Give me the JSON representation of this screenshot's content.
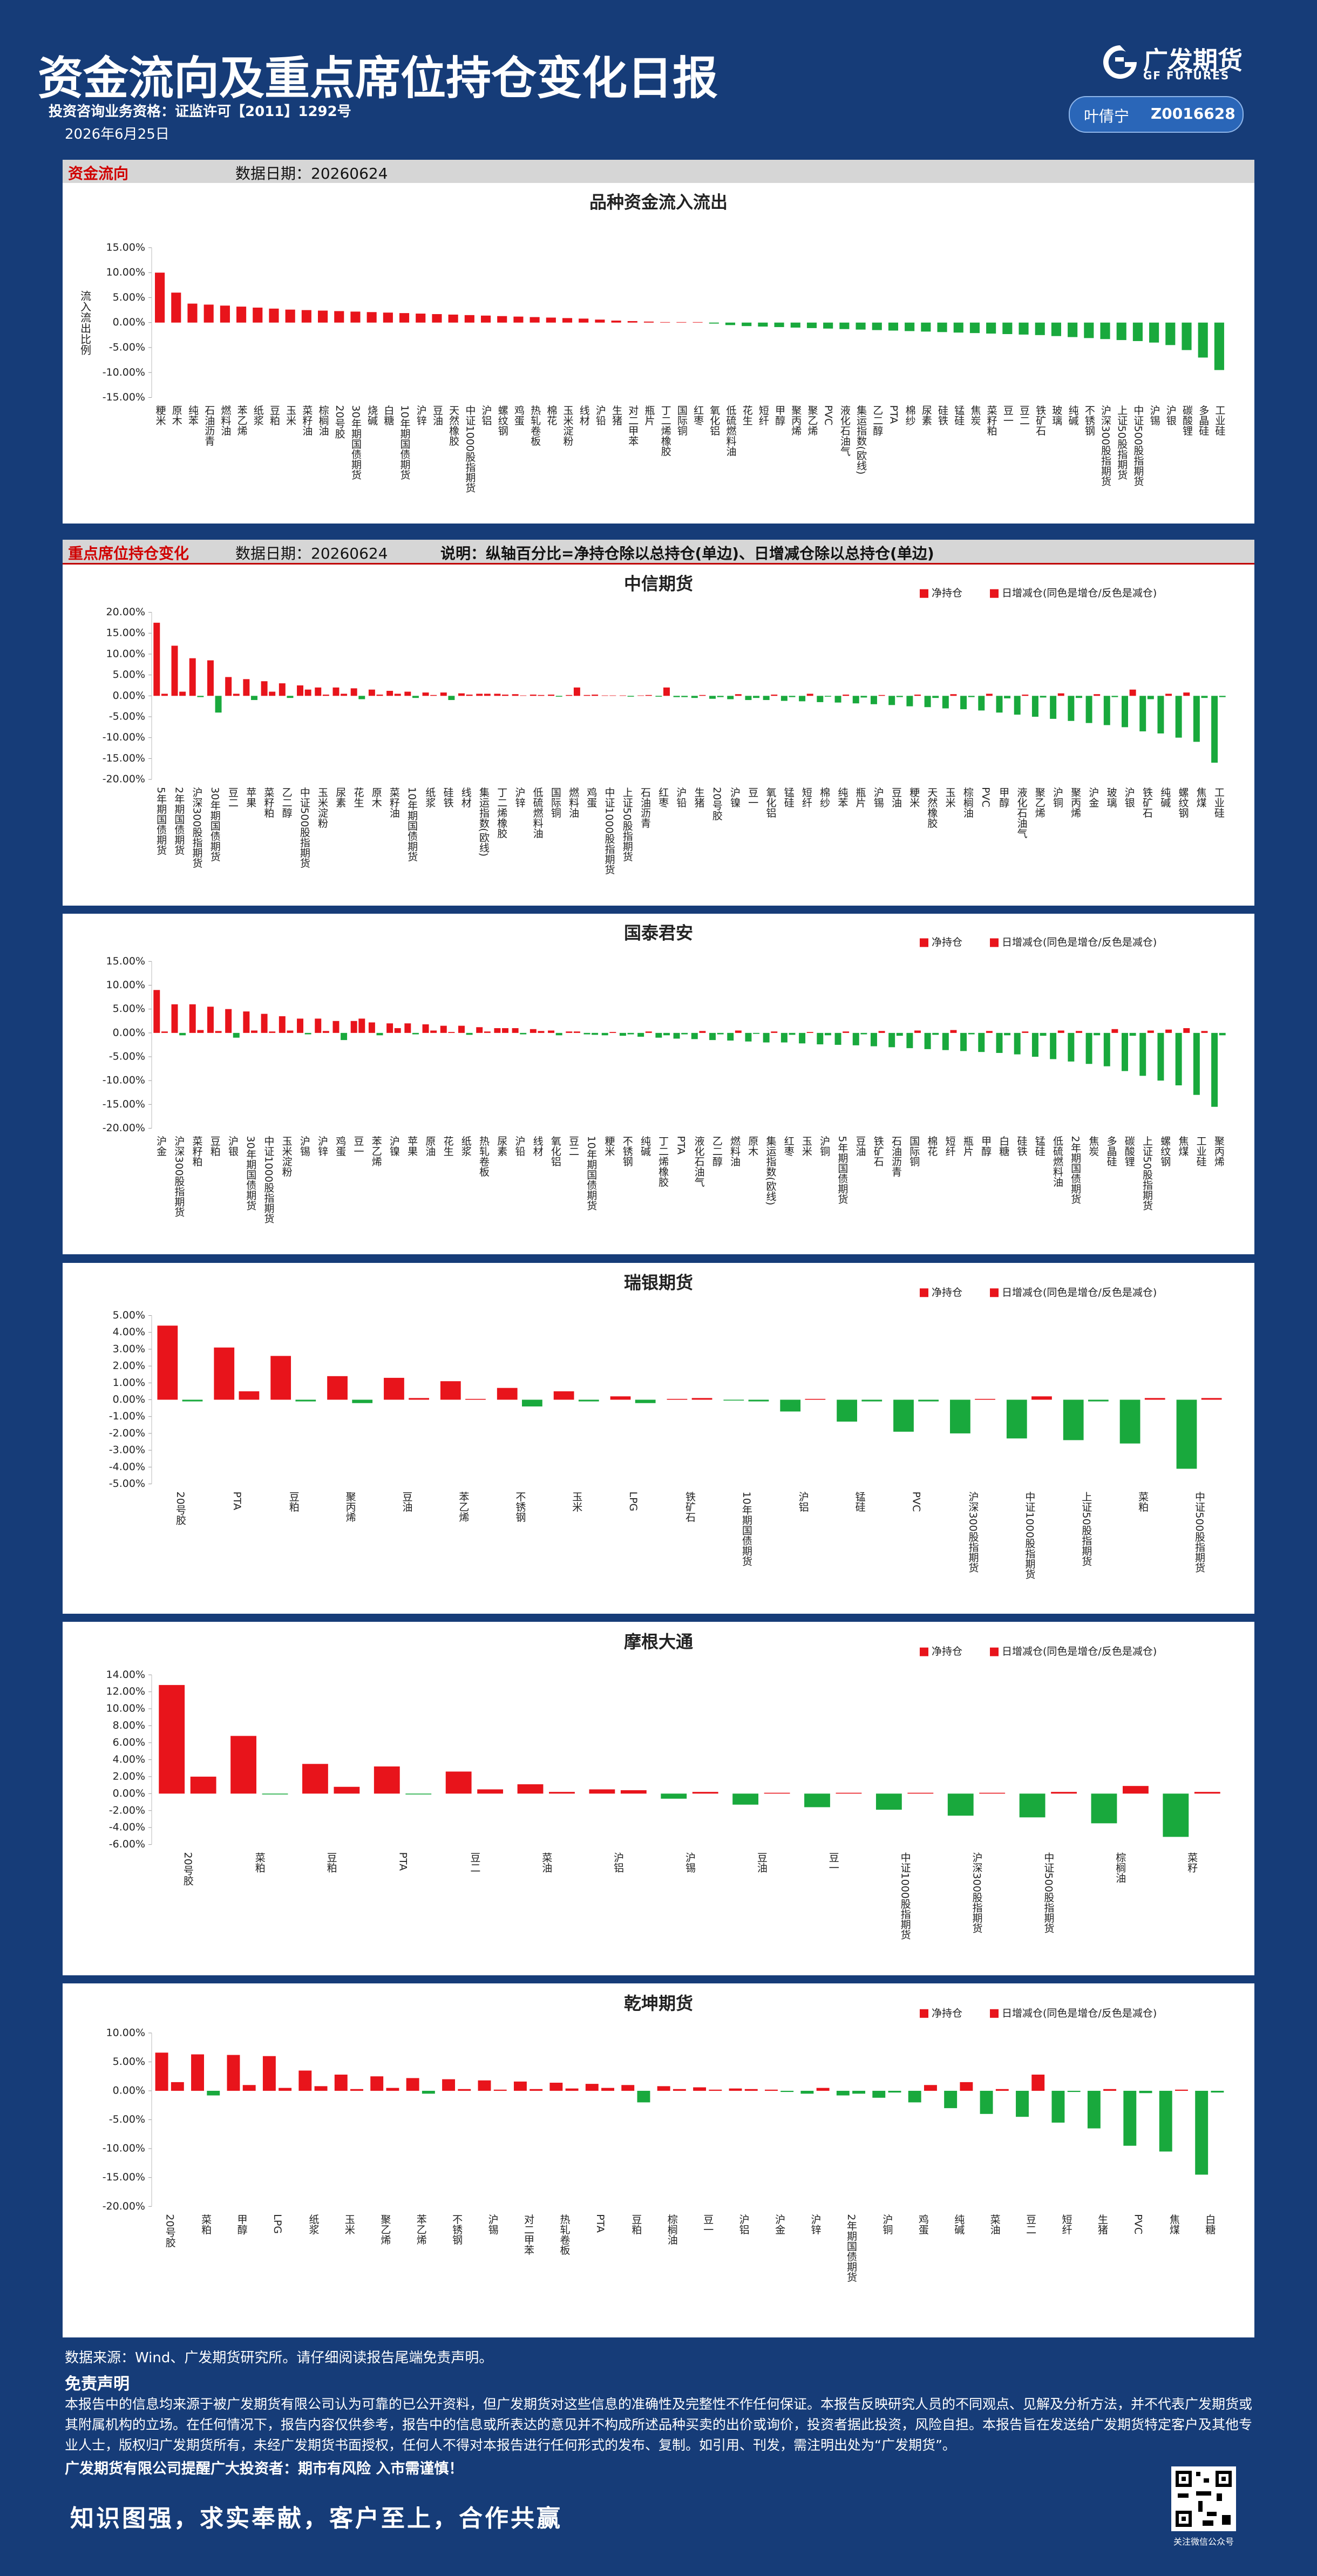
{
  "header": {
    "title": "资金流向及重点席位持仓变化日报",
    "license": "投资咨询业务资格：证监许可【2011】1292号",
    "date": "2026年6月25日",
    "brand": "广发期货",
    "brand_en": "GF FUTURES",
    "analyst": "叶倩宁",
    "analyst_id": "Z0016628"
  },
  "sections": [
    {
      "title": "资金流向",
      "date": "数据日期：20260624"
    },
    {
      "title": "重点席位持仓变化",
      "date": "数据日期：20260624",
      "note": "说明：纵轴百分比=净持仓除以总持仓(单边)、日增减仓除以总持仓(单边)"
    }
  ],
  "chart_data": [
    {
      "type": "bar",
      "title": "品种资金流入流出",
      "y_label": "流入流出比例",
      "color": "#e8141b",
      "negative_color": "#19a93d",
      "categories": [
        "粳米",
        "原木",
        "纯苯",
        "石油沥青",
        "燃料油",
        "苯乙烯",
        "纸浆",
        "豆粕",
        "玉米",
        "菜籽油",
        "棕榈油",
        "20号胶",
        "30年期国债期货",
        "烧碱",
        "白糖",
        "10年期国债期货",
        "沪锌",
        "豆油",
        "天然橡胶",
        "中证1000股指期货",
        "沪铝",
        "螺纹钢",
        "鸡蛋",
        "热轧卷板",
        "棉花",
        "玉米淀粉",
        "线材",
        "沪铅",
        "生猪",
        "对二甲苯",
        "瓶片",
        "丁二烯橡胶",
        "国际铜",
        "红枣",
        "氧化铝",
        "低硫燃料油",
        "花生",
        "短纤",
        "甲醇",
        "聚丙烯",
        "聚乙烯",
        "PVC",
        "液化石油气",
        "集运指数(欧线)",
        "乙二醇",
        "PTA",
        "棉纱",
        "尿素",
        "硅铁",
        "锰硅",
        "焦炭",
        "菜籽粕",
        "豆一",
        "豆二",
        "铁矿石",
        "玻璃",
        "纯碱",
        "不锈钢",
        "沪深300股指期货",
        "上证50股指期货",
        "中证500股指期货",
        "沪锡",
        "沪银",
        "碳酸锂",
        "多晶硅",
        "工业硅"
      ],
      "values": [
        10,
        6,
        3.8,
        3.6,
        3.4,
        3.2,
        3.0,
        2.8,
        2.6,
        2.5,
        2.4,
        2.3,
        2.2,
        2.1,
        2.0,
        1.9,
        1.8,
        1.7,
        1.6,
        1.5,
        1.4,
        1.3,
        1.2,
        1.1,
        1.0,
        0.9,
        0.8,
        0.6,
        0.4,
        0.3,
        0.2,
        0.1,
        0.1,
        0.1,
        -0.2,
        -0.5,
        -0.7,
        -0.8,
        -0.9,
        -1.0,
        -1.1,
        -1.2,
        -1.3,
        -1.4,
        -1.5,
        -1.6,
        -1.7,
        -1.8,
        -1.9,
        -2.0,
        -2.1,
        -2.2,
        -2.3,
        -2.4,
        -2.5,
        -2.7,
        -2.9,
        -3.1,
        -3.3,
        -3.5,
        -3.7,
        -4.0,
        -4.5,
        -5.5,
        -7.0,
        -9.5
      ],
      "ylim": [
        -15,
        15
      ],
      "yticks": [
        {
          "value": -15,
          "label": "-15.00%"
        },
        {
          "value": -10,
          "label": "-10.00%"
        },
        {
          "value": -5,
          "label": "-5.00%"
        },
        {
          "value": 0,
          "label": "0.00%"
        },
        {
          "value": 5,
          "label": "5.00%"
        },
        {
          "value": 10,
          "label": "10.00%"
        },
        {
          "value": 15,
          "label": "15.00%"
        }
      ]
    },
    {
      "type": "bar",
      "title": "中信期货",
      "negative_color": "#19a93d",
      "categories": [
        "5年期国债期货",
        "2年期国债期货",
        "沪深300股指期货",
        "30年期国债期货",
        "豆二",
        "苹果",
        "菜籽粕",
        "乙二醇",
        "中证500股指期货",
        "玉米淀粉",
        "尿素",
        "花生",
        "原木",
        "菜籽油",
        "10年期国债期货",
        "纸浆",
        "硅铁",
        "线材",
        "集运指数(欧线)",
        "丁二烯橡胶",
        "沪锌",
        "低硫燃料油",
        "国际铜",
        "燃料油",
        "鸡蛋",
        "中证1000股指期货",
        "上证50股指期货",
        "石油沥青",
        "红枣",
        "沪铅",
        "生猪",
        "20号胶",
        "沪镍",
        "豆一",
        "氧化铝",
        "锰硅",
        "短纤",
        "棉纱",
        "纯苯",
        "瓶片",
        "沪锡",
        "豆油",
        "粳米",
        "天然橡胶",
        "玉米",
        "棕榈油",
        "PVC",
        "甲醇",
        "液化石油气",
        "聚乙烯",
        "沪铜",
        "聚丙烯",
        "沪金",
        "玻璃",
        "沪银",
        "铁矿石",
        "纯碱",
        "螺纹钢",
        "焦煤",
        "工业硅"
      ],
      "series": [
        {
          "name": "净持仓",
          "color": "#e8141b",
          "values": [
            17.5,
            12,
            9,
            8.5,
            4.5,
            4,
            3.5,
            3,
            2.5,
            2,
            2,
            1.8,
            1.5,
            1.2,
            1,
            0.8,
            0.8,
            0.6,
            0.5,
            0.5,
            0.4,
            0.3,
            0.3,
            0.2,
            0.2,
            0.1,
            0.1,
            0.1,
            -0.2,
            -0.3,
            -0.5,
            -0.7,
            -0.8,
            -1,
            -1,
            -1.2,
            -1.3,
            -1.5,
            -1.6,
            -1.8,
            -2,
            -2.2,
            -2.5,
            -2.7,
            -3,
            -3.2,
            -3.5,
            -4,
            -4.5,
            -5,
            -5.5,
            -6,
            -6.5,
            -7,
            -7.5,
            -8.5,
            -9,
            -10,
            -11,
            -16
          ]
        },
        {
          "name": "日增减仓(同色是增仓/反色是减仓)",
          "color": "#e8141b",
          "values": [
            0.5,
            1,
            -0.3,
            -4,
            0.5,
            -1,
            1,
            -0.5,
            1.5,
            0.3,
            0.5,
            -0.8,
            0.3,
            0.5,
            -0.5,
            0.2,
            -1,
            0.3,
            0.5,
            0.3,
            0.1,
            0.2,
            -0.2,
            2,
            0.3,
            0.1,
            -0.2,
            0.2,
            2,
            -0.3,
            0.2,
            -0.3,
            0.4,
            -0.5,
            0.3,
            -0.3,
            0.5,
            -0.2,
            0.3,
            -0.4,
            0.2,
            -0.3,
            0.3,
            -0.5,
            0.4,
            -0.3,
            0.5,
            -0.6,
            0.3,
            -0.4,
            0.6,
            -0.5,
            0.4,
            -0.3,
            1.5,
            -0.8,
            0.5,
            0.8,
            -0.5,
            -0.3
          ]
        }
      ],
      "ylim": [
        -20,
        20
      ],
      "yticks": [
        {
          "value": -20,
          "label": "-20.00%"
        },
        {
          "value": -15,
          "label": "-15.00%"
        },
        {
          "value": -10,
          "label": "-10.00%"
        },
        {
          "value": -5,
          "label": "-5.00%"
        },
        {
          "value": 0,
          "label": "0.00%"
        },
        {
          "value": 5,
          "label": "5.00%"
        },
        {
          "value": 10,
          "label": "10.00%"
        },
        {
          "value": 15,
          "label": "15.00%"
        },
        {
          "value": 20,
          "label": "20.00%"
        }
      ]
    },
    {
      "type": "bar",
      "title": "国泰君安",
      "negative_color": "#19a93d",
      "categories": [
        "沪金",
        "沪深300股指期货",
        "菜籽粕",
        "豆粕",
        "沪银",
        "30年期国债期货",
        "中证1000股指期货",
        "玉米淀粉",
        "沪锡",
        "沪锌",
        "鸡蛋",
        "豆一",
        "苯乙烯",
        "沪镍",
        "苹果",
        "原油",
        "花生",
        "纸浆",
        "热轧卷板",
        "尿素",
        "沪铅",
        "线材",
        "氧化铝",
        "豆二",
        "10年期国债期货",
        "粳米",
        "不锈钢",
        "纯碱",
        "丁二烯橡胶",
        "PTA",
        "液化石油气",
        "乙二醇",
        "燃料油",
        "原木",
        "集运指数(欧线)",
        "红枣",
        "玉米",
        "沪铜",
        "5年期国债期货",
        "豆油",
        "铁矿石",
        "石油沥青",
        "国际铜",
        "棉花",
        "短纤",
        "瓶片",
        "甲醇",
        "白糖",
        "硅铁",
        "锰硅",
        "低硫燃料油",
        "2年期国债期货",
        "焦炭",
        "多晶硅",
        "碳酸锂",
        "上证50股指期货",
        "螺纹钢",
        "焦煤",
        "工业硅",
        "聚丙烯"
      ],
      "series": [
        {
          "name": "净持仓",
          "color": "#e8141b",
          "values": [
            9,
            6,
            6,
            5.5,
            5,
            4.5,
            4,
            3.5,
            3,
            3,
            2.5,
            2.5,
            2.2,
            2,
            2,
            1.8,
            1.5,
            1.5,
            1.2,
            1,
            1,
            0.8,
            0.5,
            0.3,
            -0.3,
            -0.5,
            -0.6,
            -0.8,
            -1,
            -1.2,
            -1.3,
            -1.5,
            -1.6,
            -1.8,
            -2,
            -2,
            -2.2,
            -2.4,
            -2.5,
            -2.6,
            -2.8,
            -3,
            -3.2,
            -3.4,
            -3.6,
            -3.8,
            -4,
            -4.2,
            -4.5,
            -5,
            -5.5,
            -6,
            -6.5,
            -7,
            -8,
            -9,
            -10,
            -11,
            -13,
            -15.5
          ]
        },
        {
          "name": "日增减仓(同色是增仓/反色是减仓)",
          "color": "#e8141b",
          "values": [
            0.3,
            -0.5,
            0.6,
            0.4,
            -1,
            0.5,
            0.3,
            0.5,
            -0.3,
            0.4,
            -1.5,
            3,
            -0.5,
            1,
            -0.3,
            0.5,
            0.2,
            -0.4,
            0.3,
            1,
            -0.3,
            0.4,
            -0.5,
            0.3,
            -0.4,
            0.2,
            -0.3,
            0.3,
            -0.5,
            -0.3,
            0.4,
            -0.3,
            0.5,
            -0.2,
            0.3,
            -0.4,
            0.2,
            -0.5,
            0.3,
            -0.3,
            0.4,
            -0.6,
            0.5,
            -0.4,
            0.6,
            -0.3,
            0.4,
            -0.5,
            0.3,
            -0.6,
            0.5,
            0.4,
            -0.5,
            0.8,
            -0.6,
            0.5,
            0.7,
            1,
            0.4,
            -0.5
          ]
        }
      ],
      "ylim": [
        -20,
        15
      ],
      "yticks": [
        {
          "value": -20,
          "label": "-20.00%"
        },
        {
          "value": -15,
          "label": "-15.00%"
        },
        {
          "value": -10,
          "label": "-10.00%"
        },
        {
          "value": -5,
          "label": "-5.00%"
        },
        {
          "value": 0,
          "label": "0.00%"
        },
        {
          "value": 5,
          "label": "5.00%"
        },
        {
          "value": 10,
          "label": "10.00%"
        },
        {
          "value": 15,
          "label": "15.00%"
        }
      ]
    },
    {
      "type": "bar",
      "title": "瑞银期货",
      "negative_color": "#19a93d",
      "categories": [
        "20号胶",
        "PTA",
        "豆粕",
        "聚丙烯",
        "豆油",
        "苯乙烯",
        "不锈钢",
        "玉米",
        "LPG",
        "铁矿石",
        "10年期国债期货",
        "沪铝",
        "锰硅",
        "PVC",
        "沪深300股指期货",
        "中证1000股指期货",
        "上证50股指期货",
        "菜粕",
        "中证500股指期货"
      ],
      "series": [
        {
          "name": "净持仓",
          "color": "#e8141b",
          "values": [
            4.4,
            3.1,
            2.6,
            1.4,
            1.3,
            1.1,
            0.7,
            0.5,
            0.2,
            0.05,
            -0.05,
            -0.7,
            -1.3,
            -1.9,
            -2,
            -2.3,
            -2.4,
            -2.6,
            -4.1
          ]
        },
        {
          "name": "日增减仓(同色是增仓/反色是减仓)",
          "color": "#e8141b",
          "values": [
            -0.1,
            0.5,
            -0.1,
            -0.2,
            0.1,
            0.05,
            -0.4,
            -0.1,
            -0.2,
            0.1,
            -0.1,
            0.05,
            -0.1,
            -0.1,
            0.05,
            0.2,
            -0.1,
            0.1,
            0.1
          ]
        }
      ],
      "ylim": [
        -5,
        5
      ],
      "yticks": [
        {
          "value": -5,
          "label": "-5.00%"
        },
        {
          "value": -4,
          "label": "-4.00%"
        },
        {
          "value": -3,
          "label": "-3.00%"
        },
        {
          "value": -2,
          "label": "-2.00%"
        },
        {
          "value": -1,
          "label": "-1.00%"
        },
        {
          "value": 0,
          "label": "0.00%"
        },
        {
          "value": 1,
          "label": "1.00%"
        },
        {
          "value": 2,
          "label": "2.00%"
        },
        {
          "value": 3,
          "label": "3.00%"
        },
        {
          "value": 4,
          "label": "4.00%"
        },
        {
          "value": 5,
          "label": "5.00%"
        }
      ]
    },
    {
      "type": "bar",
      "title": "摩根大通",
      "negative_color": "#19a93d",
      "categories": [
        "20号胶",
        "菜粕",
        "豆粕",
        "PTA",
        "豆二",
        "菜油",
        "沪铝",
        "沪锡",
        "豆油",
        "豆一",
        "中证1000股指期货",
        "沪深300股指期货",
        "中证500股指期货",
        "棕榈油",
        "菜籽"
      ],
      "series": [
        {
          "name": "净持仓",
          "color": "#e8141b",
          "values": [
            12.8,
            6.8,
            3.5,
            3.2,
            2.6,
            1.1,
            0.5,
            -0.6,
            -1.3,
            -1.6,
            -1.9,
            -2.6,
            -2.8,
            -3.5,
            -5.1
          ]
        },
        {
          "name": "日增减仓(同色是增仓/反色是减仓)",
          "color": "#e8141b",
          "values": [
            2,
            -0.1,
            0.8,
            -0.1,
            0.5,
            0.2,
            0.4,
            0.2,
            0.1,
            0.1,
            0.1,
            0.1,
            0.2,
            0.9,
            0.2
          ]
        }
      ],
      "ylim": [
        -6,
        14
      ],
      "yticks": [
        {
          "value": -6,
          "label": "-6.00%"
        },
        {
          "value": -4,
          "label": "-4.00%"
        },
        {
          "value": -2,
          "label": "-2.00%"
        },
        {
          "value": 0,
          "label": "0.00%"
        },
        {
          "value": 2,
          "label": "2.00%"
        },
        {
          "value": 4,
          "label": "4.00%"
        },
        {
          "value": 6,
          "label": "6.00%"
        },
        {
          "value": 8,
          "label": "8.00%"
        },
        {
          "value": 10,
          "label": "10.00%"
        },
        {
          "value": 12,
          "label": "12.00%"
        },
        {
          "value": 14,
          "label": "14.00%"
        }
      ]
    },
    {
      "type": "bar",
      "title": "乾坤期货",
      "negative_color": "#19a93d",
      "categories": [
        "20号胶",
        "菜粕",
        "甲醇",
        "LPG",
        "纸浆",
        "玉米",
        "聚乙烯",
        "苯乙烯",
        "不锈钢",
        "沪锡",
        "对二甲苯",
        "热轧卷板",
        "PTA",
        "豆粕",
        "棕榈油",
        "豆一",
        "沪铝",
        "沪金",
        "沪锌",
        "2年期国债期货",
        "沪铜",
        "鸡蛋",
        "纯碱",
        "菜油",
        "豆二",
        "短纤",
        "生猪",
        "PVC",
        "焦煤",
        "白糖"
      ],
      "series": [
        {
          "name": "净持仓",
          "color": "#e8141b",
          "values": [
            6.6,
            6.3,
            6.2,
            6.0,
            3.5,
            2.8,
            2.5,
            2.2,
            2.0,
            1.8,
            1.6,
            1.4,
            1.2,
            1.0,
            0.8,
            0.6,
            0.4,
            0.2,
            -0.5,
            -0.8,
            -1.2,
            -2.0,
            -3.0,
            -4.0,
            -4.5,
            -5.5,
            -6.5,
            -9.5,
            -10.5,
            -14.5
          ]
        },
        {
          "name": "日增减仓(同色是增仓/反色是减仓)",
          "color": "#e8141b",
          "values": [
            1.5,
            -0.8,
            1,
            0.5,
            0.8,
            0.3,
            0.5,
            -0.5,
            0.3,
            0.2,
            0.3,
            0.4,
            0.5,
            -2,
            0.3,
            0.2,
            0.3,
            -0.2,
            0.5,
            -0.5,
            -0.3,
            1,
            1.5,
            0.3,
            2.8,
            -0.2,
            0.3,
            -0.4,
            0.2,
            -0.3
          ]
        }
      ],
      "ylim": [
        -20,
        10
      ],
      "yticks": [
        {
          "value": -20,
          "label": "-20.00%"
        },
        {
          "value": -15,
          "label": "-15.00%"
        },
        {
          "value": -10,
          "label": "-10.00%"
        },
        {
          "value": -5,
          "label": "-5.00%"
        },
        {
          "value": 0,
          "label": "0.00%"
        },
        {
          "value": 5,
          "label": "5.00%"
        },
        {
          "value": 10,
          "label": "10.00%"
        }
      ]
    }
  ],
  "footer": {
    "source": "数据来源：Wind、广发期货研究所。请仔细阅读报告尾端免责声明。",
    "disclaimer_title": "免责声明",
    "disclaimer": "本报告中的信息均来源于被广发期货有限公司认为可靠的已公开资料，但广发期货对这些信息的准确性及完整性不作任何保证。本报告反映研究人员的不同观点、见解及分析方法，并不代表广发期货或其附属机构的立场。在任何情况下，报告内容仅供参考，报告中的信息或所表达的意见并不构成所述品种买卖的出价或询价，投资者据此投资，风险自担。本报告旨在发送给广发期货特定客户及其他专业人士，版权归广发期货所有，未经广发期货书面授权，任何人不得对本报告进行任何形式的发布、复制。如引用、刊发，需注明出处为“广发期货”。",
    "reminder": "广发期货有限公司提醒广大投资者：期市有风险 入市需谨慎！",
    "slogan": "知识图强，求实奉献，客户至上，合作共赢",
    "qr_caption": "关注微信公众号"
  }
}
